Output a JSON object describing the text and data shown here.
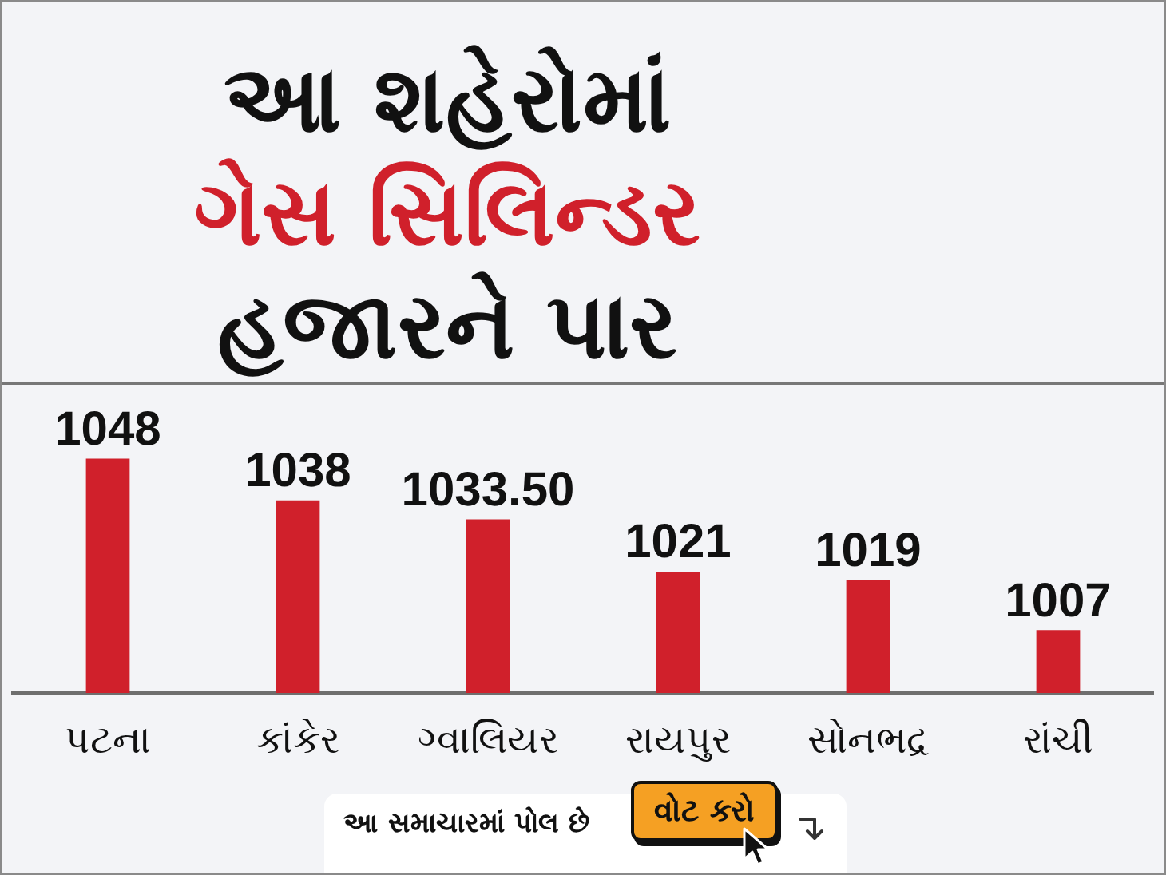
{
  "chart_data": {
    "type": "bar",
    "title": "આ શહેરોમાં\nગેસ સિલિન્ડર\nહજારને પાર",
    "categories": [
      "પટના",
      "કાંકેર",
      "ગ્વાલિયર",
      "રાયપુર",
      "સોનભદ્ર",
      "રાંચી"
    ],
    "values": [
      1048,
      1038,
      1033.5,
      1021,
      1019,
      1007
    ],
    "value_labels": [
      "1048",
      "1038",
      "1033.50",
      "1021",
      "1019",
      "1007"
    ],
    "color": "#d0202b",
    "ylim": [
      992,
      1066
    ],
    "tick_labels": "x",
    "annotations": [
      "આ સમાચારમાં પોલ છે",
      "વોટ કરો"
    ]
  }
}
